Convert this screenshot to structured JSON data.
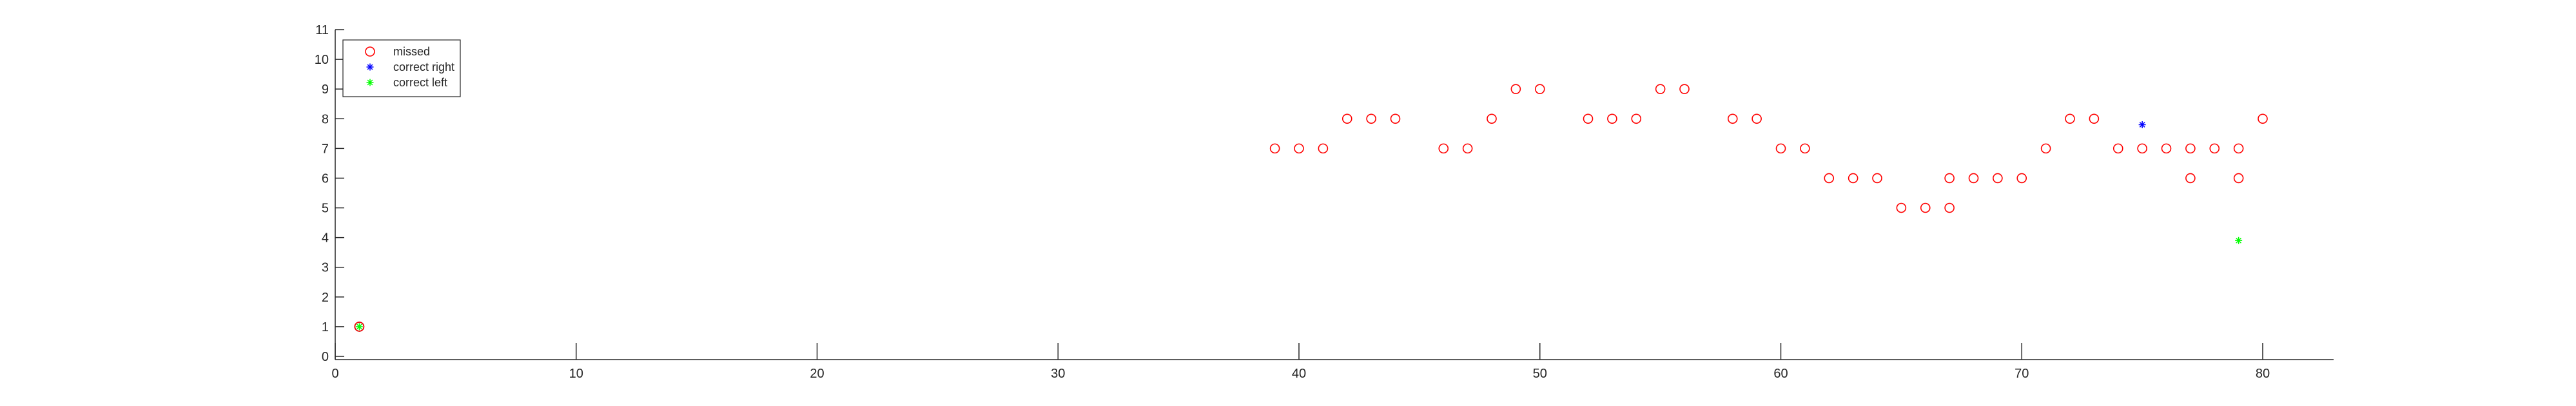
{
  "chart_data": {
    "type": "scatter",
    "title": "",
    "xlabel": "",
    "ylabel": "",
    "xlim": [
      0,
      81
    ],
    "ylim": [
      -0.2,
      11
    ],
    "xticks": [
      0,
      10,
      20,
      30,
      40,
      50,
      60,
      70,
      80
    ],
    "yticks": [
      0,
      1,
      2,
      3,
      4,
      5,
      6,
      7,
      8,
      9,
      10,
      11
    ],
    "grid": false,
    "legend_position": "top-left",
    "series": [
      {
        "name": "missed",
        "marker": "circle-open",
        "color": "#ff0000",
        "points": [
          [
            39,
            7
          ],
          [
            40,
            7
          ],
          [
            41,
            7
          ],
          [
            42,
            8
          ],
          [
            43,
            8
          ],
          [
            44,
            8
          ],
          [
            46,
            7
          ],
          [
            47,
            7
          ],
          [
            48,
            8
          ],
          [
            49,
            9
          ],
          [
            50,
            9
          ],
          [
            52,
            8
          ],
          [
            53,
            8
          ],
          [
            54,
            8
          ],
          [
            55,
            9
          ],
          [
            56,
            9
          ],
          [
            58,
            8
          ],
          [
            59,
            8
          ],
          [
            60,
            7
          ],
          [
            61,
            7
          ],
          [
            62,
            6
          ],
          [
            63,
            6
          ],
          [
            64,
            6
          ],
          [
            65,
            5
          ],
          [
            66,
            5
          ],
          [
            67,
            5
          ],
          [
            67,
            6
          ],
          [
            68,
            6
          ],
          [
            69,
            6
          ],
          [
            70,
            6
          ],
          [
            71,
            7
          ],
          [
            72,
            8
          ],
          [
            73,
            8
          ],
          [
            74,
            7
          ],
          [
            75,
            7
          ],
          [
            76,
            7
          ],
          [
            77,
            6
          ],
          [
            77,
            7
          ],
          [
            78,
            7
          ],
          [
            79,
            6
          ],
          [
            79,
            7
          ],
          [
            80,
            8
          ]
        ]
      },
      {
        "name": "correct right",
        "marker": "asterisk",
        "color": "#0000ff",
        "points": [
          [
            75,
            7.8
          ]
        ]
      },
      {
        "name": "correct left",
        "marker": "asterisk",
        "color": "#00ff00",
        "points": [
          [
            79,
            3.9
          ]
        ]
      }
    ],
    "extra_points": [
      {
        "marker": "circle-open",
        "color": "#000000",
        "point": [
          1,
          1
        ]
      },
      {
        "marker": "circle-open",
        "color": "#ff0000",
        "point": [
          1,
          1
        ]
      },
      {
        "marker": "asterisk",
        "color": "#00ff00",
        "point": [
          1,
          1
        ]
      }
    ]
  }
}
